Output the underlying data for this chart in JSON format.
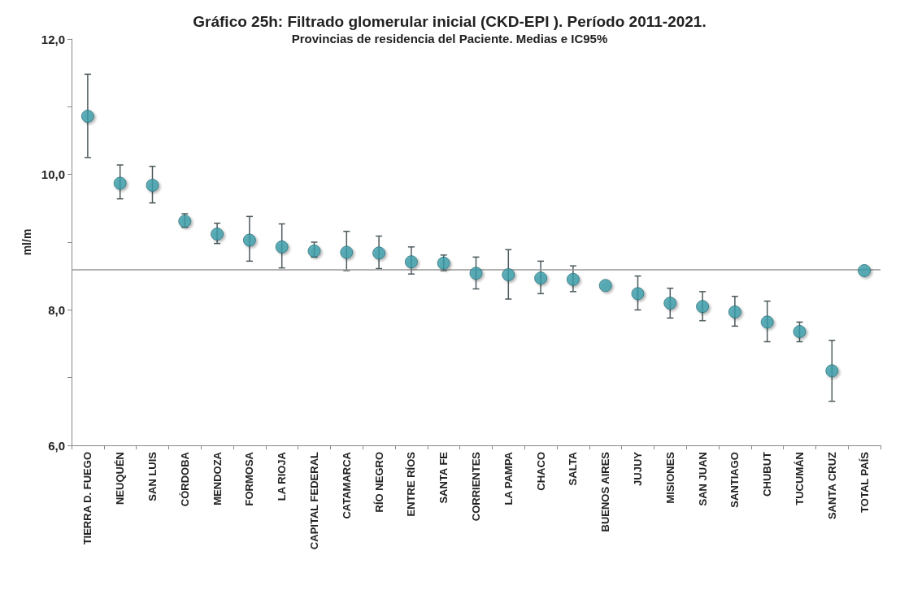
{
  "chart_data": {
    "type": "scatter",
    "title": "Gráfico 25h: Filtrado glomerular inicial (CKD-EPI ). Período 2011-2021.",
    "subtitle": "Provincias de residencia del Paciente. Medias e IC95%",
    "ylabel": "ml/m",
    "categories": [
      "TIERRA D. FUEGO",
      "NEUQUÉN",
      "SAN LUIS",
      "CÓRDOBA",
      "MENDOZA",
      "FORMOSA",
      "LA RIOJA",
      "CAPITAL FEDERAL",
      "CATAMARCA",
      "RÍO NEGRO",
      "ENTRE RÍOS",
      "SANTA FE",
      "CORRIENTES",
      "LA PAMPA",
      "CHACO",
      "SALTA",
      "BUENOS AIRES",
      "JUJUY",
      "MISIONES",
      "SAN JUAN",
      "SANTIAGO",
      "CHUBUT",
      "TUCUMÁN",
      "SANTA CRUZ",
      "TOTAL PAÍS"
    ],
    "series": [
      {
        "color": "#3c9fab",
        "values": [
          10.86,
          9.87,
          9.84,
          9.31,
          9.12,
          9.03,
          8.93,
          8.87,
          8.85,
          8.84,
          8.71,
          8.69,
          8.54,
          8.52,
          8.47,
          8.45,
          8.36,
          8.24,
          8.1,
          8.05,
          7.97,
          7.82,
          7.68,
          7.1,
          8.58
        ],
        "errors": [
          [
            10.25,
            11.48
          ],
          [
            9.64,
            10.14
          ],
          [
            9.58,
            10.12
          ],
          [
            9.22,
            9.42
          ],
          [
            8.98,
            9.28
          ],
          [
            8.72,
            9.38
          ],
          [
            8.62,
            9.27
          ],
          [
            8.78,
            9.0
          ],
          [
            8.58,
            9.16
          ],
          [
            8.61,
            9.09
          ],
          [
            8.53,
            8.93
          ],
          [
            8.58,
            8.81
          ],
          [
            8.31,
            8.78
          ],
          [
            8.16,
            8.89
          ],
          [
            8.24,
            8.72
          ],
          [
            8.27,
            8.65
          ],
          null,
          [
            8.0,
            8.5
          ],
          [
            7.88,
            8.32
          ],
          [
            7.84,
            8.27
          ],
          [
            7.76,
            8.2
          ],
          [
            7.53,
            8.13
          ],
          [
            7.53,
            7.82
          ],
          [
            6.65,
            7.55
          ],
          null
        ]
      }
    ],
    "ylim": [
      6,
      12
    ],
    "yticks": [
      {
        "value": 6,
        "label": "6,0"
      },
      {
        "value": 7,
        "label": null
      },
      {
        "value": 8,
        "label": "8,0"
      },
      {
        "value": 9,
        "label": null
      },
      {
        "value": 10,
        "label": "10,0"
      },
      {
        "value": 11,
        "label": null
      },
      {
        "value": 12,
        "label": "12,0"
      }
    ],
    "ref_lines": [
      {
        "axis": "y",
        "value": 8.6,
        "color": "#999999"
      }
    ],
    "marker": "circle",
    "grid": false
  }
}
